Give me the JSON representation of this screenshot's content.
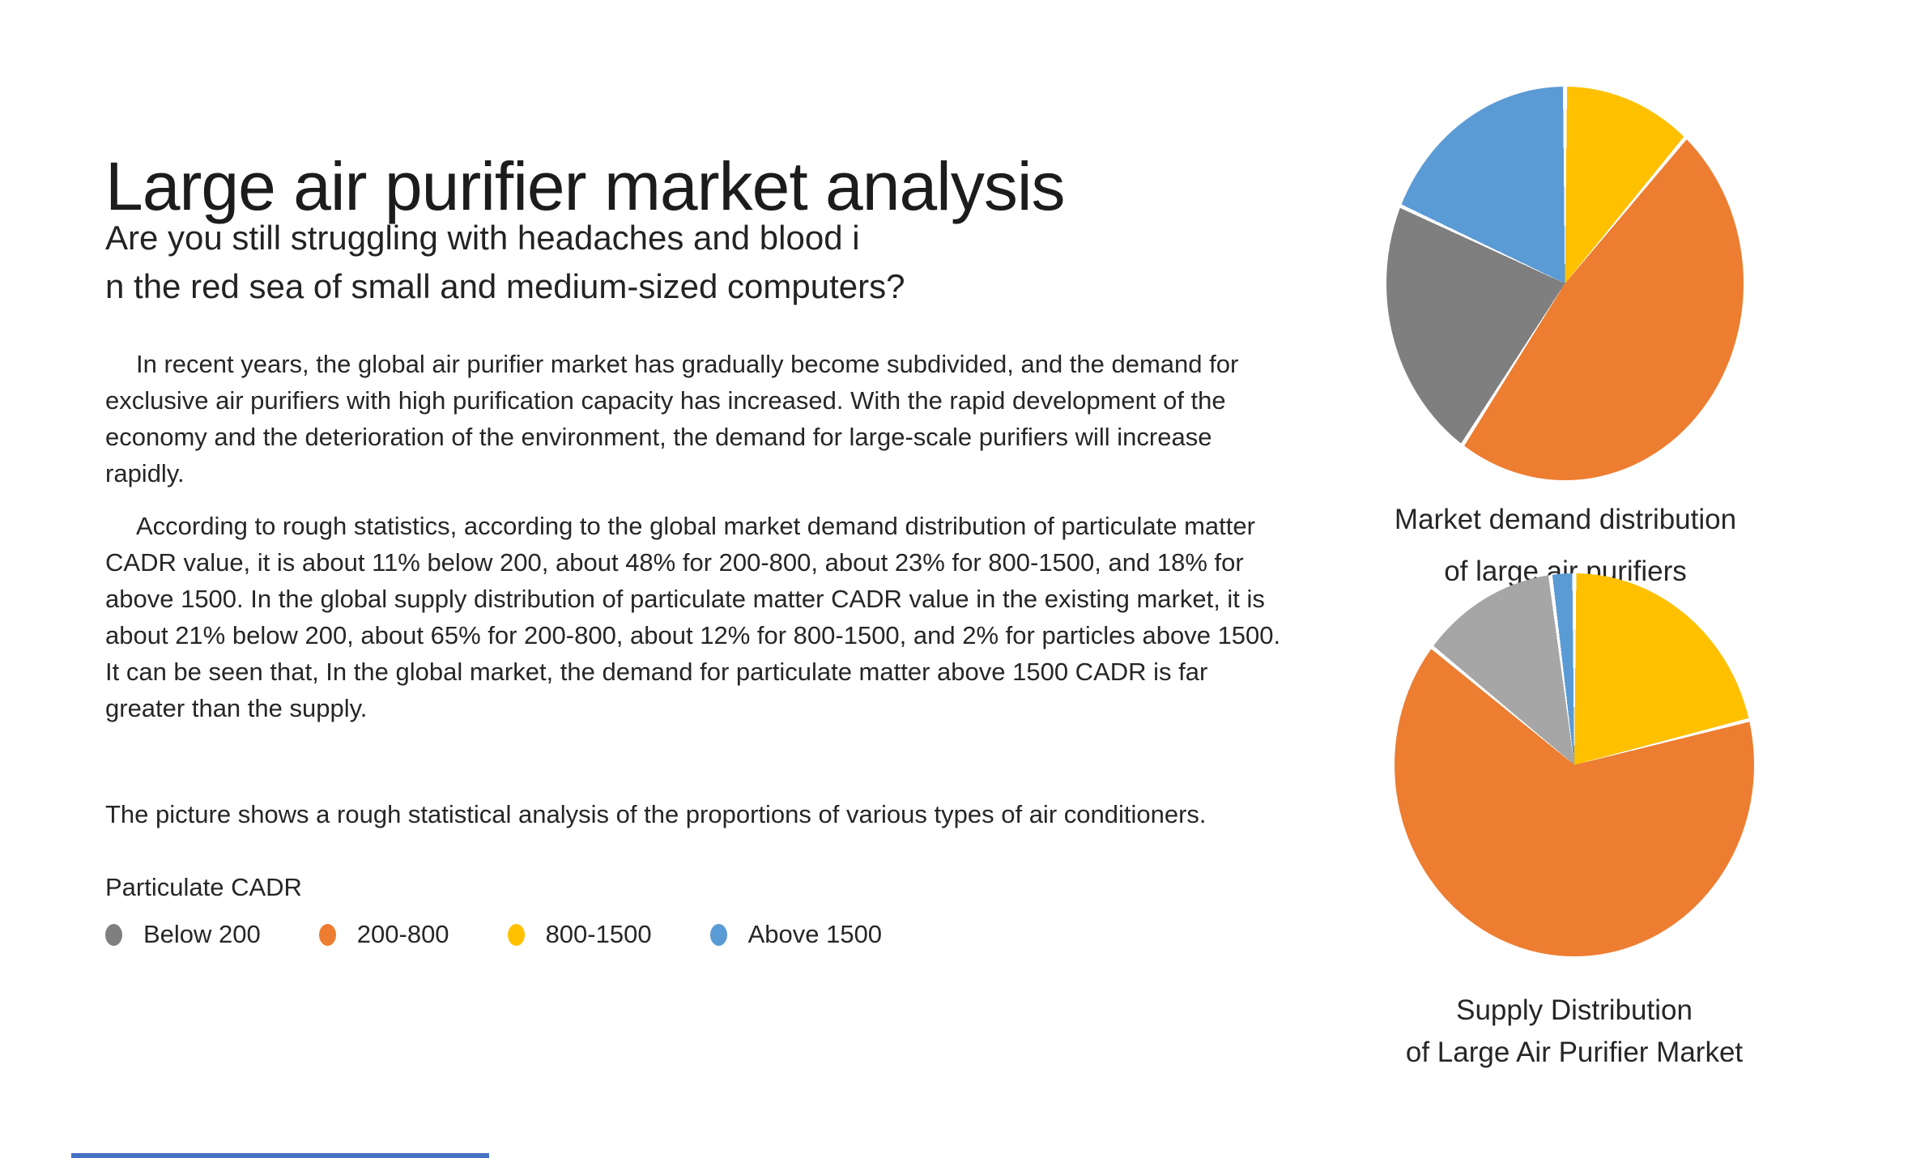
{
  "title": "Large air purifier market analysis",
  "subtitle": {
    "line1": "Are you still struggling with headaches and blood i",
    "line2": "n the red sea of small and medium-sized computers?"
  },
  "paragraphs": {
    "p1": "In recent years, the global air purifier market has gradually become subdivided, and the demand for exclusive air purifiers with high purification capacity has increased. With the rapid development of the economy and the deterioration of the environment, the demand for large-scale purifiers will increase rapidly.",
    "p2": "According to rough statistics, according to the global market demand distribution of particulate matter CADR value, it is about 11% below 200, about 48% for 200-800, about 23% for 800-1500, and 18% for above 1500. In the global supply distribution of particulate matter CADR value in the existing market, it is about 21% below 200, about 65% for 200-800, about 12% for 800-1500, and 2% for particles above 1500. It can be seen that, In the global market, the demand for particulate matter above 1500 CADR is far greater than the supply.",
    "p3": "The picture shows a rough statistical analysis of the proportions of various types of air conditioners."
  },
  "legend": {
    "title": "Particulate CADR",
    "items": [
      {
        "label": "Below 200",
        "color": "#7F7F7F"
      },
      {
        "label": "200-800",
        "color": "#ED7D31"
      },
      {
        "label": "800-1500",
        "color": "#FFC000"
      },
      {
        "label": "Above 1500",
        "color": "#5B9BD5"
      }
    ]
  },
  "chart_data": [
    {
      "type": "pie",
      "name": "market-demand-distribution",
      "title": "Market demand distribution of large air purifiers",
      "title_lines": [
        "Market demand distribution",
        "of large air purifiers"
      ],
      "unit": "percent",
      "start_angle_deg": 0,
      "direction": "clockwise",
      "slices": [
        {
          "label": "Below 200",
          "value": 11,
          "color": "#FFC000"
        },
        {
          "label": "200-800",
          "value": 48,
          "color": "#ED7D31"
        },
        {
          "label": "800-1500",
          "value": 23,
          "color": "#7F7F7F"
        },
        {
          "label": "Above 1500",
          "value": 18,
          "color": "#5B9BD5"
        }
      ]
    },
    {
      "type": "pie",
      "name": "supply-distribution",
      "title": "Supply Distribution of Large Air Purifier Market",
      "title_lines": [
        "Supply Distribution",
        "of Large Air Purifier Market"
      ],
      "unit": "percent",
      "start_angle_deg": 0,
      "direction": "clockwise",
      "slices": [
        {
          "label": "Below 200",
          "value": 21,
          "color": "#FFC000"
        },
        {
          "label": "200-800",
          "value": 65,
          "color": "#ED7D31"
        },
        {
          "label": "800-1500",
          "value": 12,
          "color": "#A6A6A6"
        },
        {
          "label": "Above 1500",
          "value": 2,
          "color": "#5B9BD5"
        }
      ]
    }
  ],
  "decor": {
    "bottom_bar_color": "#4472C4"
  }
}
